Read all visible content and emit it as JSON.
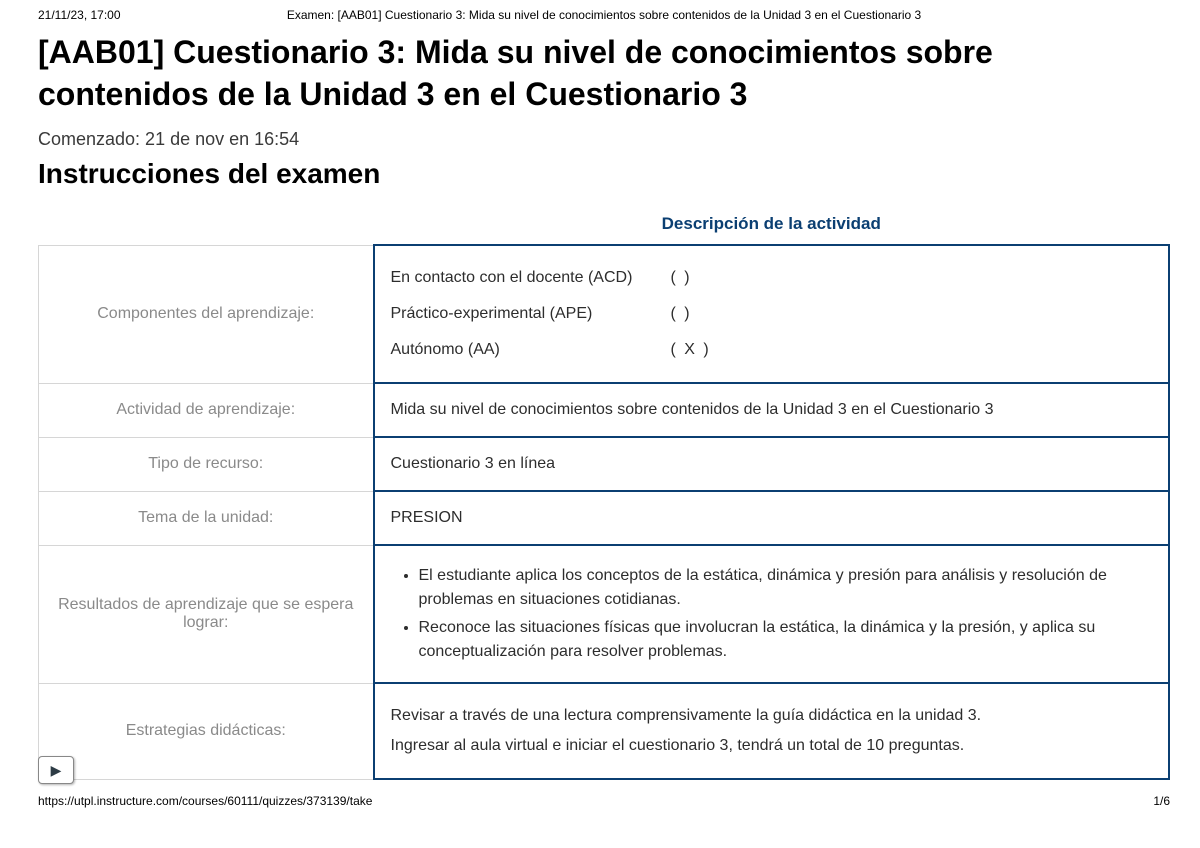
{
  "print_header": {
    "timestamp": "21/11/23, 17:00",
    "doc_title": "Examen: [AAB01] Cuestionario 3: Mida su nivel de conocimientos sobre contenidos de la Unidad 3 en el Cuestionario 3"
  },
  "title": "[AAB01] Cuestionario 3: Mida su nivel de conocimientos sobre contenidos de la Unidad 3 en el Cuestionario 3",
  "started_line": "Comenzado: 21 de nov en 16:54",
  "instructions_heading": "Instrucciones del examen",
  "table": {
    "caption": "Descripción de la actividad",
    "rows": {
      "componentes": {
        "label": "Componentes del aprendizaje:",
        "items": [
          {
            "name": "En contacto con el docente (ACD)",
            "mark": "(      )"
          },
          {
            "name": "Práctico-experimental (APE)",
            "mark": "(      )"
          },
          {
            "name": "Autónomo (AA)",
            "mark": "( X   )"
          }
        ]
      },
      "actividad": {
        "label": "Actividad de aprendizaje:",
        "value": "Mida su nivel de conocimientos sobre contenidos de la Unidad 3 en el Cuestionario 3"
      },
      "tipo": {
        "label": "Tipo de recurso:",
        "value": "Cuestionario 3 en línea"
      },
      "tema": {
        "label": "Tema de la unidad:",
        "value": "PRESION"
      },
      "resultados": {
        "label": "Resultados de aprendizaje que se espera lograr:",
        "bullets": [
          "El estudiante aplica los conceptos de la estática, dinámica y presión para análisis y resolución de problemas en situaciones cotidianas.",
          "Reconoce las situaciones físicas que involucran la estática, la dinámica y la presión, y aplica su conceptualización para resolver problemas."
        ]
      },
      "estrategias": {
        "label": "Estrategias didácticas:",
        "paragraphs": [
          "Revisar a través de una lectura comprensivamente la guía didáctica en la unidad 3.",
          "Ingresar al aula virtual e iniciar el cuestionario 3, tendrá un total de 10 preguntas."
        ]
      }
    }
  },
  "play_button_glyph": "▶",
  "print_footer": {
    "url": "https://utpl.instructure.com/courses/60111/quizzes/373139/take",
    "page": "1/6"
  },
  "colors": {
    "accent": "#0b3f72",
    "label_text": "#8a8a8a",
    "label_border": "#d6d6d6"
  }
}
